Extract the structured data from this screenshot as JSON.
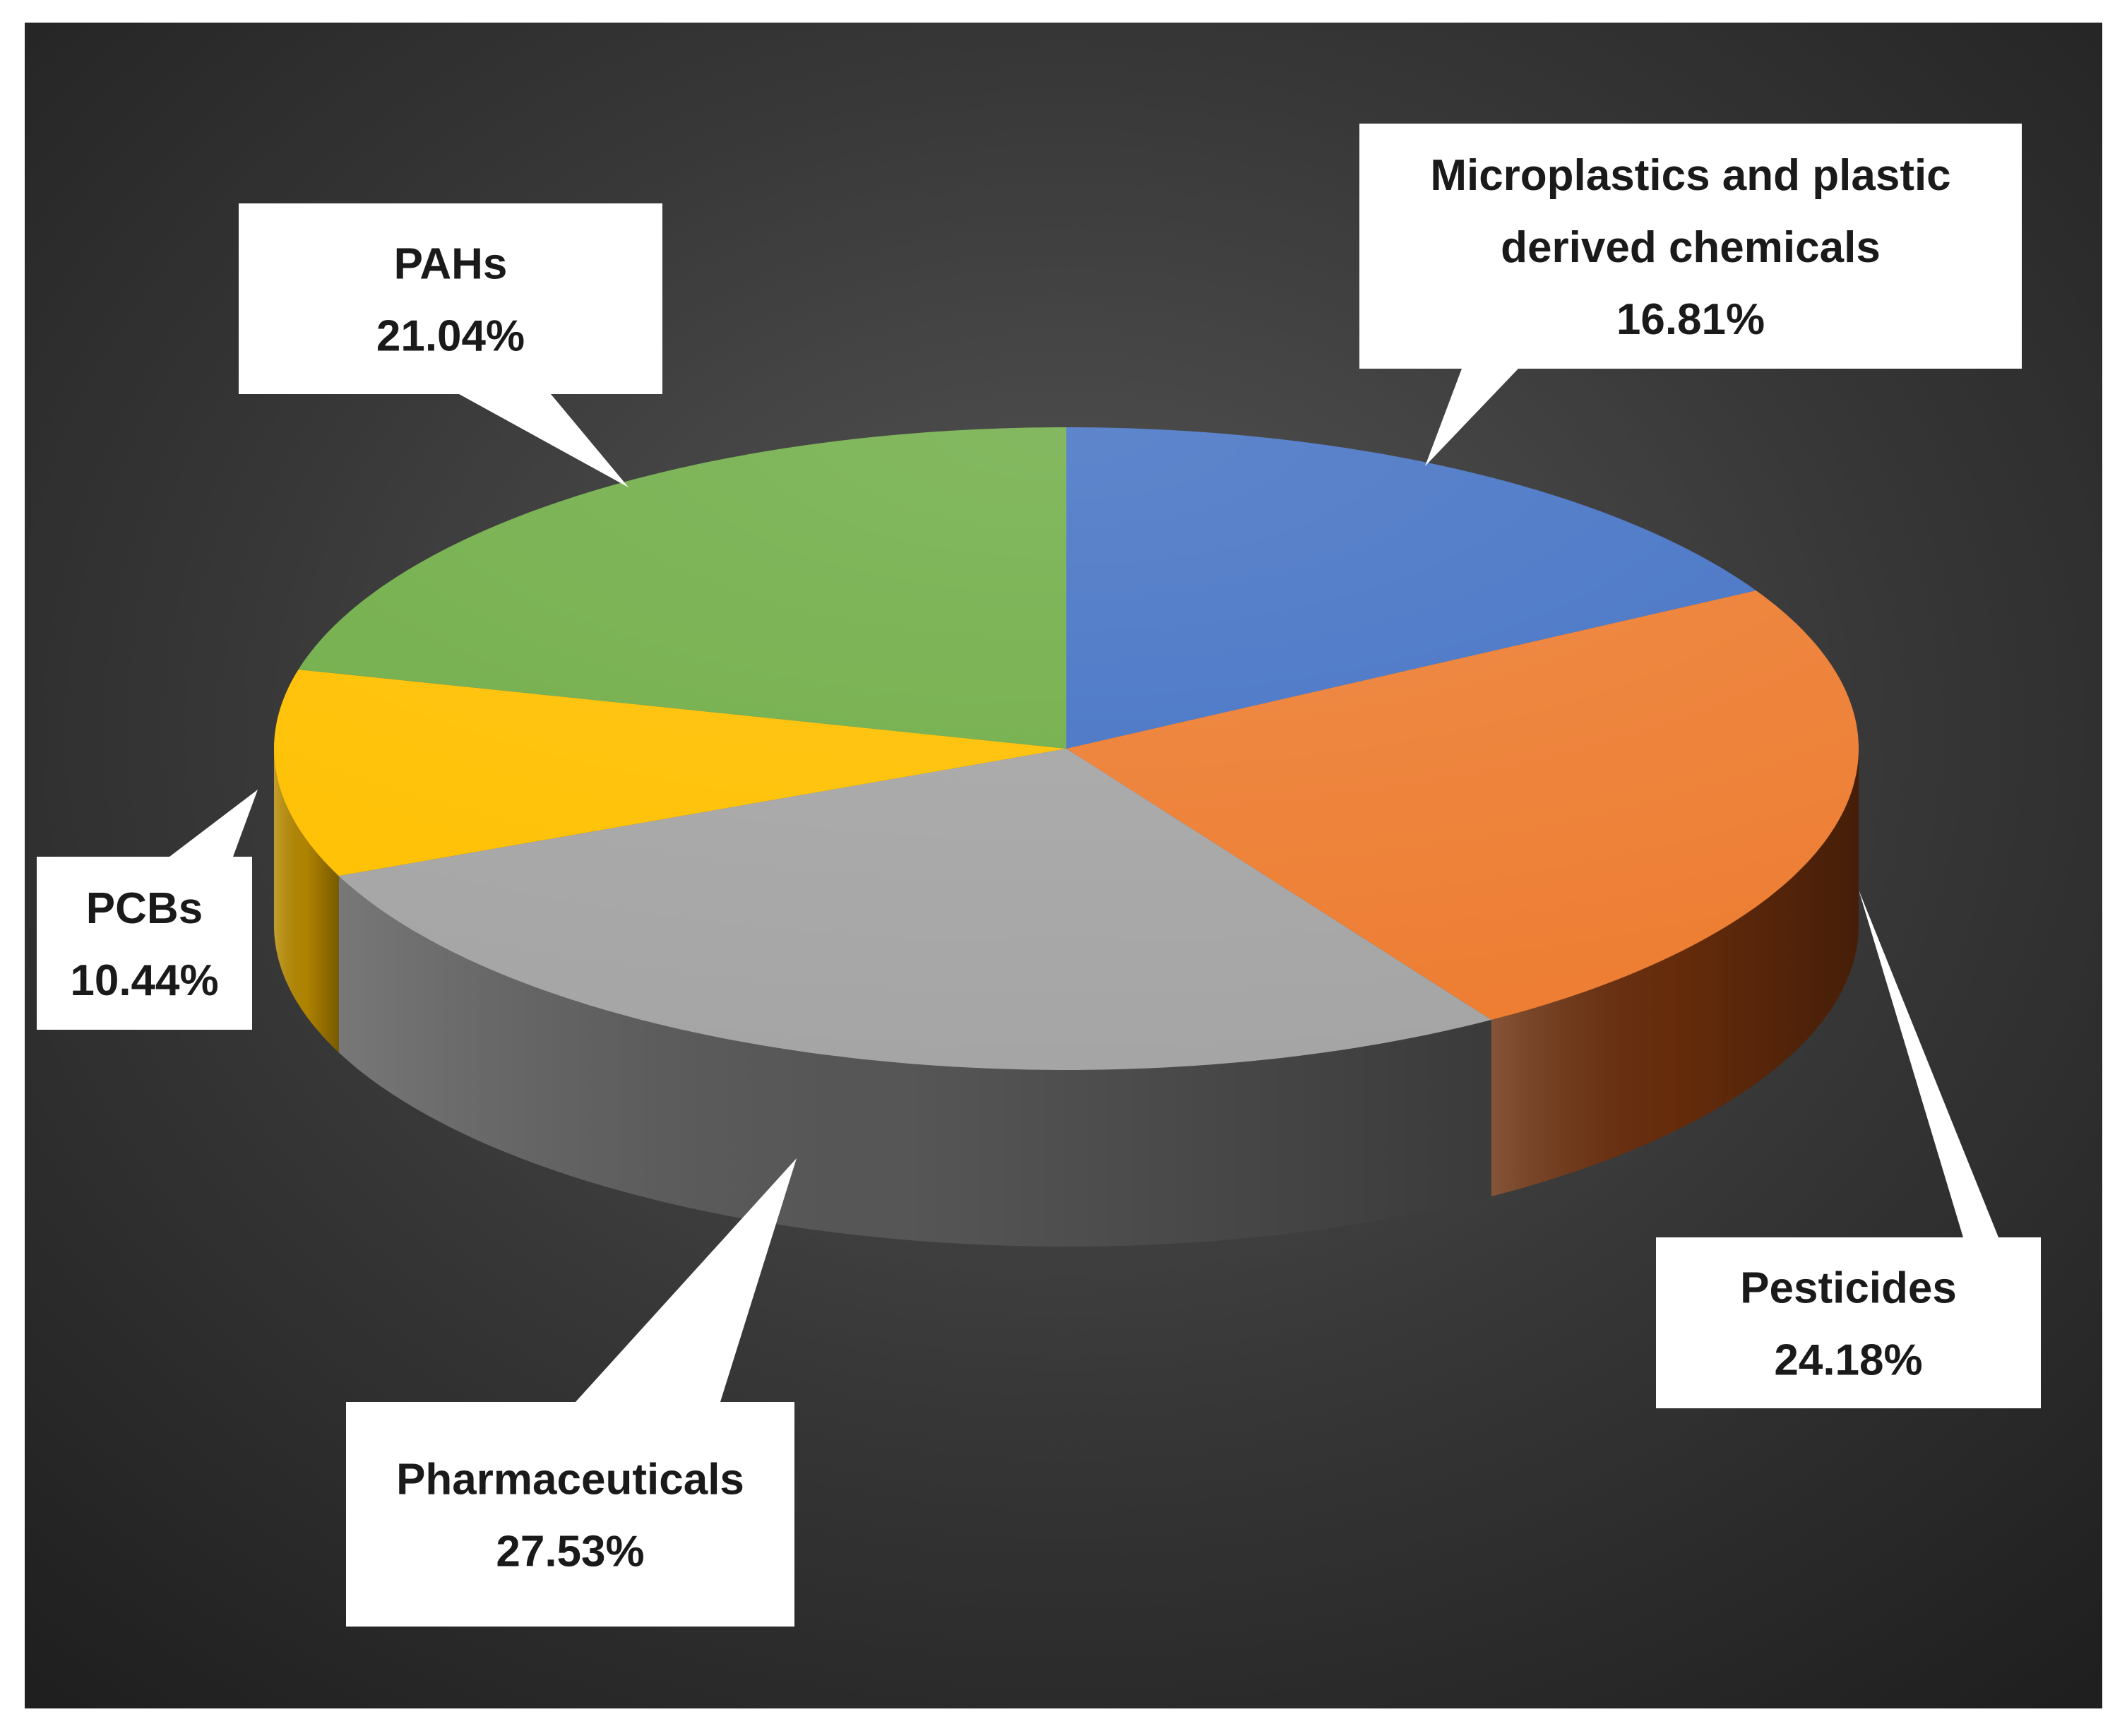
{
  "chart_data": {
    "type": "pie",
    "title": "",
    "start_angle_deg": 0,
    "direction": "clockwise",
    "slices": [
      {
        "label": "Microplastics  and plastic derived chemicals",
        "label_lines": [
          "Microplastics  and plastic",
          "derived chemicals"
        ],
        "value": 16.81,
        "display": "16.81%",
        "color": "#4472c4",
        "side": "#2a4a86"
      },
      {
        "label": "Pesticides",
        "label_lines": [
          "Pesticides"
        ],
        "value": 24.18,
        "display": "24.18%",
        "color": "#ed7d31",
        "side": "#6b2e0c"
      },
      {
        "label": "Pharmaceuticals",
        "label_lines": [
          "Pharmaceuticals"
        ],
        "value": 27.53,
        "display": "27.53%",
        "color": "#a5a5a5",
        "side": "#5a5a5a"
      },
      {
        "label": "PCBs",
        "label_lines": [
          "PCBs"
        ],
        "value": 10.44,
        "display": "10.44%",
        "color": "#ffc000",
        "side": "#b88a00"
      },
      {
        "label": "PAHs",
        "label_lines": [
          "PAHs"
        ],
        "value": 21.04,
        "display": "21.04%",
        "color": "#70ad47",
        "side": "#3f6a25"
      }
    ]
  }
}
